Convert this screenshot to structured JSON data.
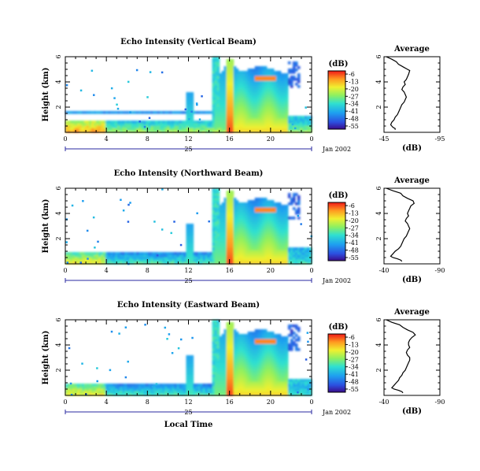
{
  "chart_data": [
    {
      "type": "heatmap",
      "title": "Echo Intensity (Vertical Beam)",
      "ylabel": "Height (km)",
      "xlabel": "",
      "x_ticks": [
        "0",
        "4",
        "8",
        "12",
        "16",
        "20",
        "0"
      ],
      "y_ticks": [
        "2",
        "4",
        "6"
      ],
      "xlim": [
        0,
        24
      ],
      "ylim": [
        0,
        6
      ],
      "day_label": "25",
      "date_label": "Jan 2002",
      "colorbar": {
        "label": "(dB)",
        "ticks": [
          "-6",
          "-13",
          "-20",
          "-27",
          "-34",
          "-41",
          "-48",
          "-55"
        ],
        "range": [
          -58,
          -3
        ]
      }
    },
    {
      "type": "line",
      "title": "Average",
      "xlabel": "(dB)",
      "x_ticks": [
        "-45",
        "-95"
      ],
      "xlim": [
        -45,
        -95
      ],
      "ylim": [
        0,
        6
      ],
      "y_ticks": [
        "2",
        "4",
        "6"
      ],
      "series": [
        {
          "x": [
            -47,
            -52,
            -56,
            -58,
            -62,
            -66,
            -68,
            -67,
            -66,
            -65,
            -63,
            -64,
            -62,
            -61,
            -63,
            -64,
            -65,
            -64,
            -63,
            -61,
            -60,
            -59,
            -58,
            -57,
            -55,
            -54,
            -52,
            -51,
            -52,
            -53,
            -55,
            -55
          ],
          "y": [
            6.0,
            5.8,
            5.6,
            5.4,
            5.2,
            5.0,
            4.9,
            4.6,
            4.4,
            4.2,
            4.0,
            3.8,
            3.6,
            3.4,
            3.2,
            3.0,
            2.8,
            2.6,
            2.4,
            2.2,
            2.0,
            1.8,
            1.6,
            1.4,
            1.2,
            1.0,
            0.8,
            0.6,
            0.5,
            0.4,
            0.3,
            0.2
          ]
        }
      ]
    },
    {
      "type": "heatmap",
      "title": "Echo Intensity (Northward Beam)",
      "ylabel": "Height (km)",
      "xlabel": "",
      "x_ticks": [
        "0",
        "4",
        "8",
        "12",
        "16",
        "20",
        "0"
      ],
      "y_ticks": [
        "2",
        "4",
        "6"
      ],
      "xlim": [
        0,
        24
      ],
      "ylim": [
        0,
        6
      ],
      "day_label": "25",
      "date_label": "Jan 2002",
      "colorbar": {
        "label": "(dB)",
        "ticks": [
          "-6",
          "-13",
          "-20",
          "-27",
          "-34",
          "-41",
          "-48",
          "-55"
        ],
        "range": [
          -58,
          -3
        ]
      }
    },
    {
      "type": "line",
      "title": "Average",
      "xlabel": "(dB)",
      "x_ticks": [
        "-40",
        "-90"
      ],
      "xlim": [
        -40,
        -90
      ],
      "ylim": [
        0,
        6
      ],
      "y_ticks": [
        "2",
        "4",
        "6"
      ],
      "series": [
        {
          "x": [
            -42,
            -48,
            -55,
            -57,
            -61,
            -66,
            -67,
            -64,
            -63,
            -62,
            -61,
            -62,
            -60,
            -59,
            -61,
            -62,
            -63,
            -62,
            -61,
            -60,
            -58,
            -57,
            -56,
            -55,
            -53,
            -50,
            -48,
            -46,
            -48,
            -52,
            -55,
            -56
          ],
          "y": [
            6.0,
            5.8,
            5.6,
            5.4,
            5.2,
            5.0,
            4.8,
            4.6,
            4.4,
            4.2,
            4.0,
            3.8,
            3.6,
            3.4,
            3.2,
            3.0,
            2.8,
            2.6,
            2.4,
            2.2,
            2.0,
            1.8,
            1.6,
            1.4,
            1.2,
            1.0,
            0.8,
            0.6,
            0.5,
            0.4,
            0.3,
            0.2
          ]
        }
      ]
    },
    {
      "type": "heatmap",
      "title": "Echo Intensity (Eastward Beam)",
      "ylabel": "Height (km)",
      "xlabel": "Local Time",
      "x_ticks": [
        "0",
        "4",
        "8",
        "12",
        "16",
        "20",
        "0"
      ],
      "y_ticks": [
        "2",
        "4",
        "6"
      ],
      "xlim": [
        0,
        24
      ],
      "ylim": [
        0,
        6
      ],
      "day_label": "25",
      "date_label": "Jan 2002",
      "colorbar": {
        "label": "(dB)",
        "ticks": [
          "-6",
          "-13",
          "-20",
          "-27",
          "-34",
          "-41",
          "-48",
          "-55"
        ],
        "range": [
          -58,
          -3
        ]
      }
    },
    {
      "type": "line",
      "title": "Average",
      "xlabel": "(dB)",
      "x_ticks": [
        "-40",
        "-90"
      ],
      "xlim": [
        -40,
        -90
      ],
      "ylim": [
        0,
        6
      ],
      "y_ticks": [
        "2",
        "4",
        "6"
      ],
      "series": [
        {
          "x": [
            -42,
            -47,
            -54,
            -57,
            -61,
            -66,
            -68,
            -65,
            -63,
            -62,
            -62,
            -63,
            -61,
            -60,
            -61,
            -63,
            -63,
            -62,
            -61,
            -60,
            -59,
            -57,
            -56,
            -54,
            -53,
            -51,
            -49,
            -47,
            -49,
            -53,
            -56,
            -57
          ],
          "y": [
            6.0,
            5.8,
            5.6,
            5.4,
            5.2,
            5.0,
            4.8,
            4.6,
            4.4,
            4.2,
            4.0,
            3.8,
            3.6,
            3.4,
            3.2,
            3.0,
            2.8,
            2.6,
            2.4,
            2.2,
            2.0,
            1.8,
            1.6,
            1.4,
            1.2,
            1.0,
            0.8,
            0.6,
            0.5,
            0.4,
            0.3,
            0.2
          ]
        }
      ]
    }
  ]
}
